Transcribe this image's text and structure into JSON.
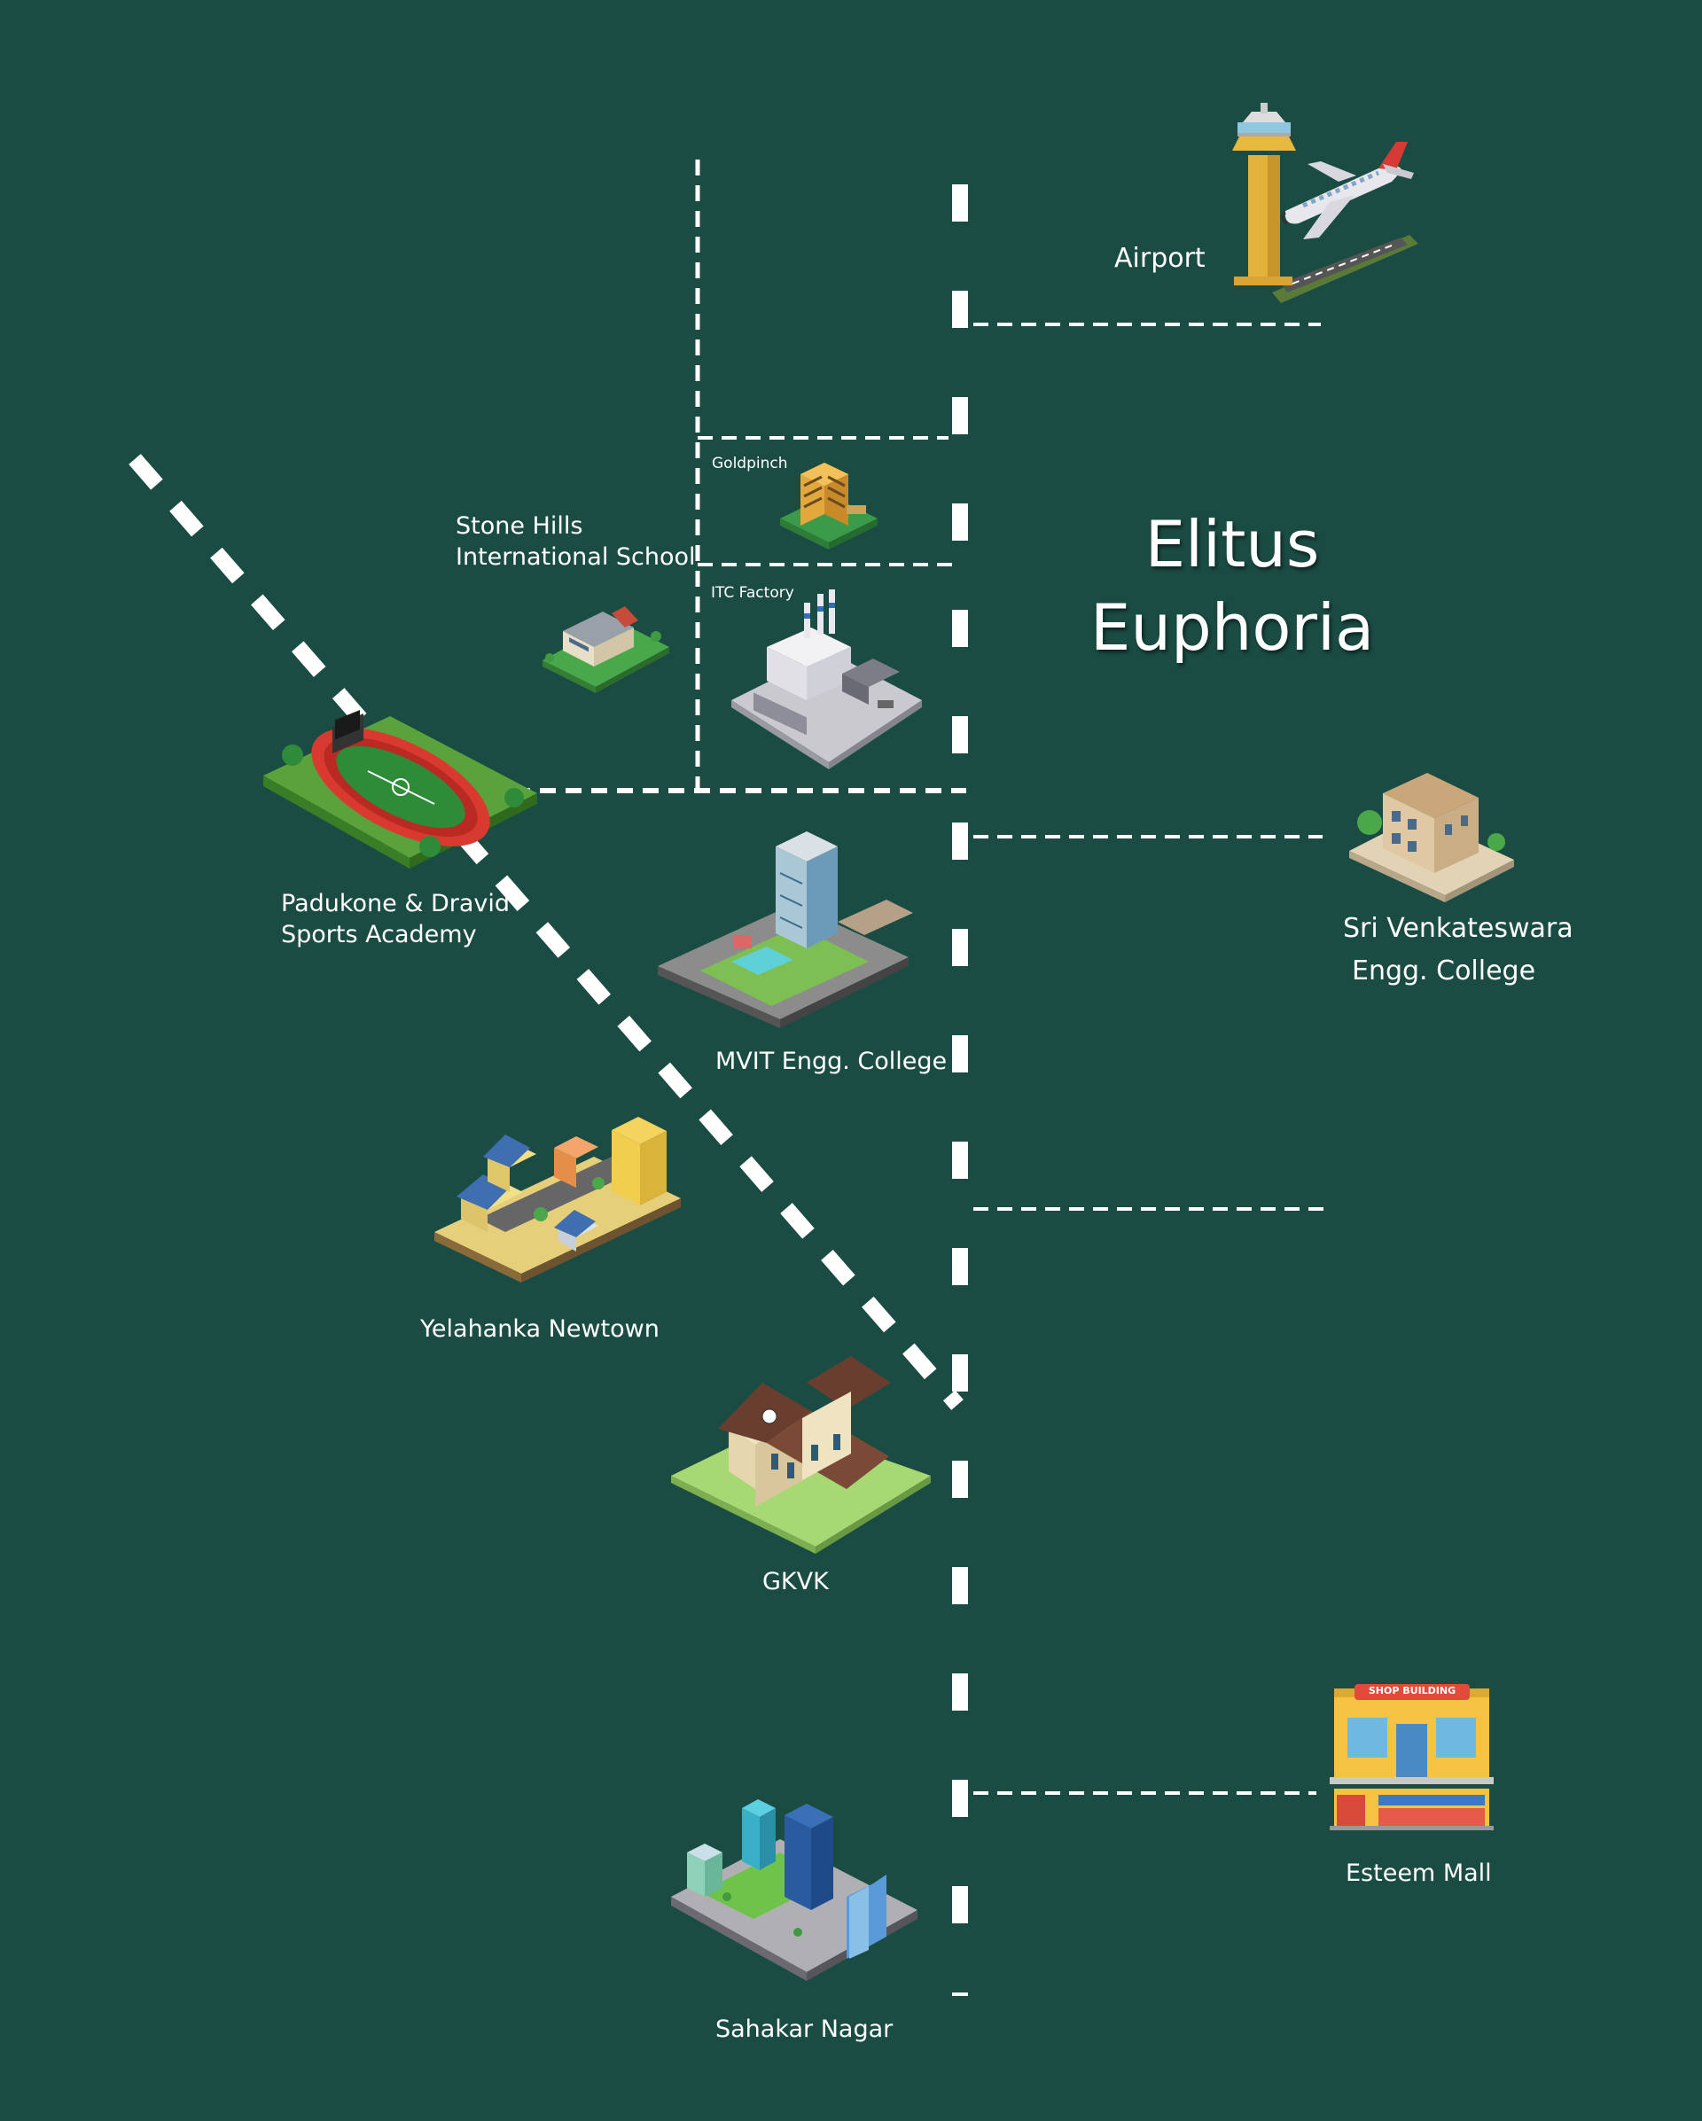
{
  "project": {
    "line1": "Elitus",
    "line2": "Euphoria"
  },
  "landmarks": {
    "airport": "Airport",
    "goldpinch": "Goldpinch",
    "itc_factory": "ITC Factory",
    "stone_hills_1": "Stone Hills",
    "stone_hills_2": "International School",
    "padukone_1": "Padukone & Dravid",
    "padukone_2": "Sports Academy",
    "mvit": "MVIT Engg. College",
    "sri_venkateswara_1": "Sri Venkateswara",
    "sri_venkateswara_2": "Engg. College",
    "yelahanka": "Yelahanka Newtown",
    "gkvk": "GKVK",
    "esteem_mall": "Esteem Mall",
    "sahakar_nagar": "Sahakar Nagar"
  },
  "shop_sign": "SHOP BUILDING",
  "colors": {
    "background": "#1b4c44",
    "road": "#ffffff",
    "label": "#ffffff"
  }
}
